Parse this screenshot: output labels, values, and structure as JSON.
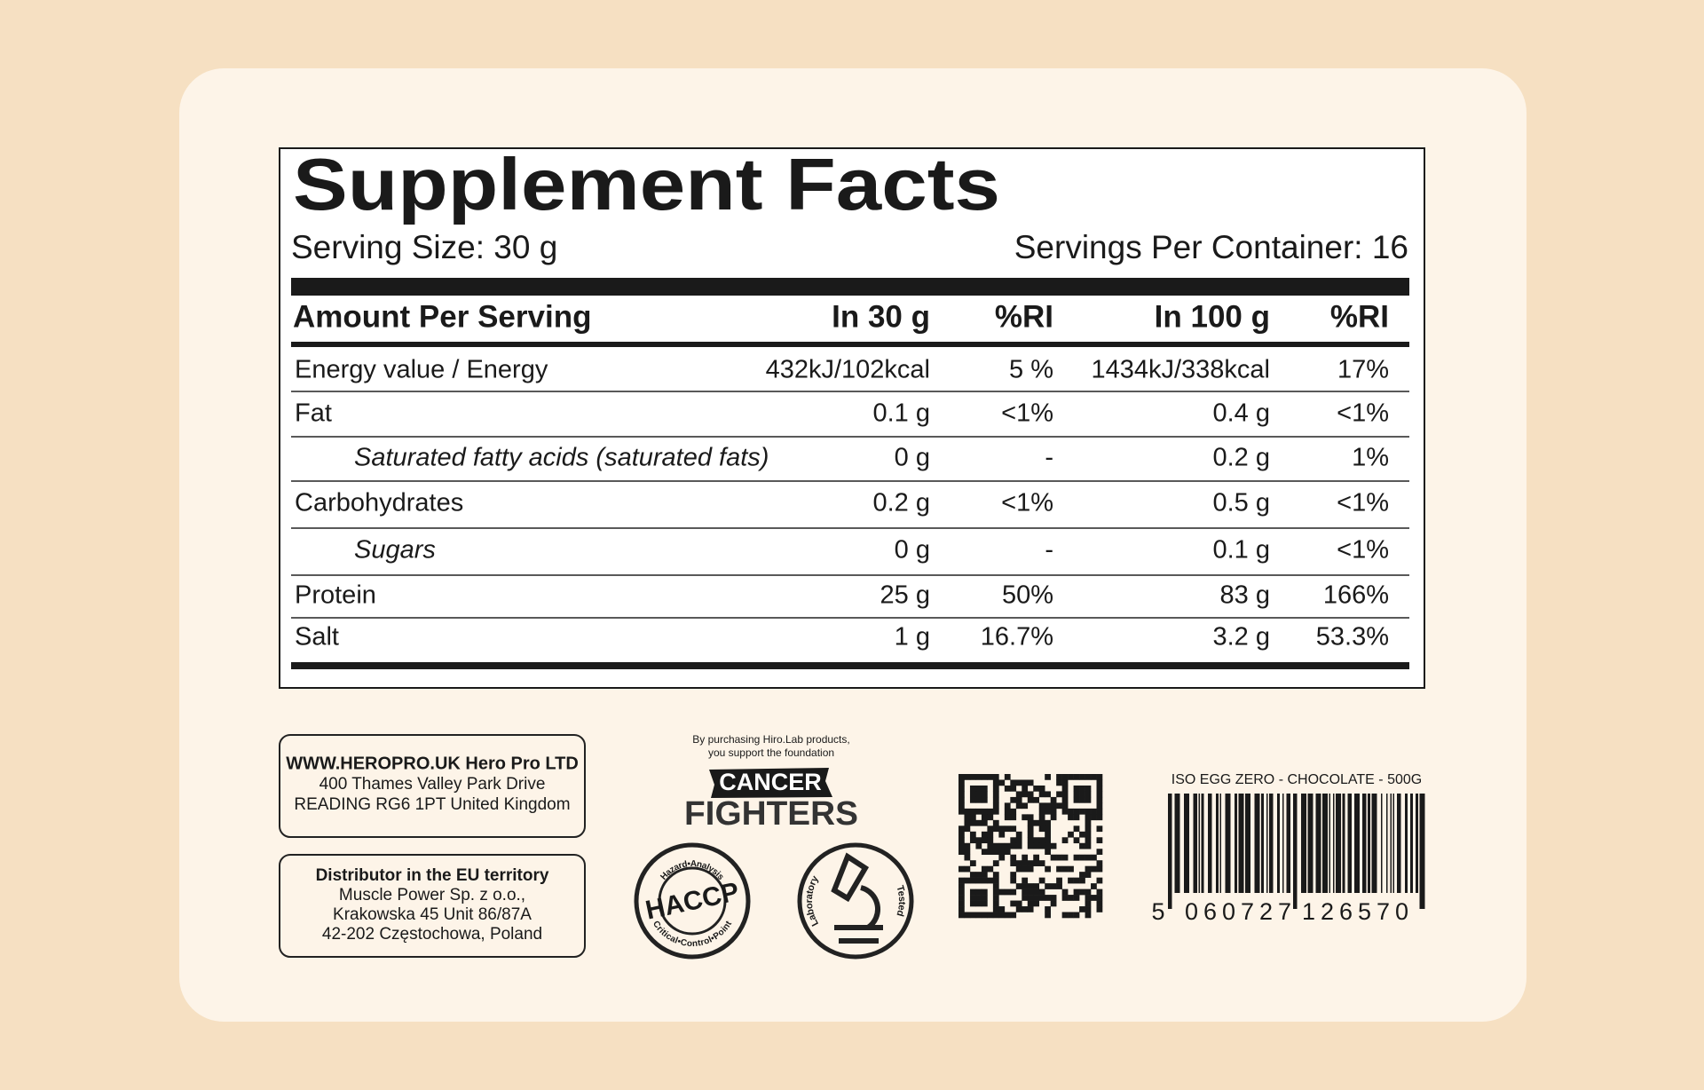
{
  "header": {
    "title": "Supplement Facts",
    "serving_size": "Serving Size: 30 g",
    "servings_per_container": "Servings Per Container: 16"
  },
  "table": {
    "columns": [
      "Amount Per Serving",
      "In 30 g",
      "%RI",
      "In 100 g",
      "%RI"
    ],
    "rows": [
      {
        "cells": [
          "Energy value / Energy",
          "432kJ/102kcal",
          "5 %",
          "1434kJ/338kcal",
          "17%"
        ]
      },
      {
        "cells": [
          "Fat",
          "0.1 g",
          "<1%",
          "0.4 g",
          "<1%"
        ]
      },
      {
        "cells": [
          "Saturated fatty acids (saturated fats)",
          "0 g",
          "-",
          "0.2 g",
          "1%"
        ],
        "sub": true
      },
      {
        "cells": [
          "Carbohydrates",
          "0.2 g",
          "<1%",
          "0.5 g",
          "<1%"
        ]
      },
      {
        "cells": [
          "Sugars",
          "0 g",
          "-",
          "0.1 g",
          "<1%"
        ],
        "sub": true
      },
      {
        "cells": [
          "Protein",
          "25 g",
          "50%",
          "83 g",
          "166%"
        ]
      },
      {
        "cells": [
          "Salt",
          "1 g",
          "16.7%",
          "3.2 g",
          "53.3%"
        ]
      }
    ]
  },
  "manufacturer": {
    "lines": [
      "WWW.HEROPRO.UK Hero Pro LTD",
      "400 Thames Valley Park Drive",
      "READING RG6 1PT United Kingdom"
    ]
  },
  "distributor": {
    "lines": [
      "Distributor in the EU territory",
      "Muscle Power Sp. z o.o.,",
      "Krakowska 45 Unit  86/87A",
      "42-202 Częstochowa, Poland"
    ]
  },
  "foundation": {
    "note": [
      "By purchasing Hiro.Lab products,",
      "you support the foundation"
    ],
    "name_top": "CANCER",
    "name_bottom": "FIGHTERS"
  },
  "badges": {
    "haccp": {
      "label": "HACCP",
      "top": "Hazard•Analysis",
      "bottom": "Critical•Control•Point"
    },
    "lab": {
      "left": "Laboratory",
      "right": "Tested"
    }
  },
  "barcode": {
    "product": "ISO EGG ZERO - CHOCOLATE - 500G",
    "digits": [
      "5",
      "060727",
      "126570"
    ]
  }
}
